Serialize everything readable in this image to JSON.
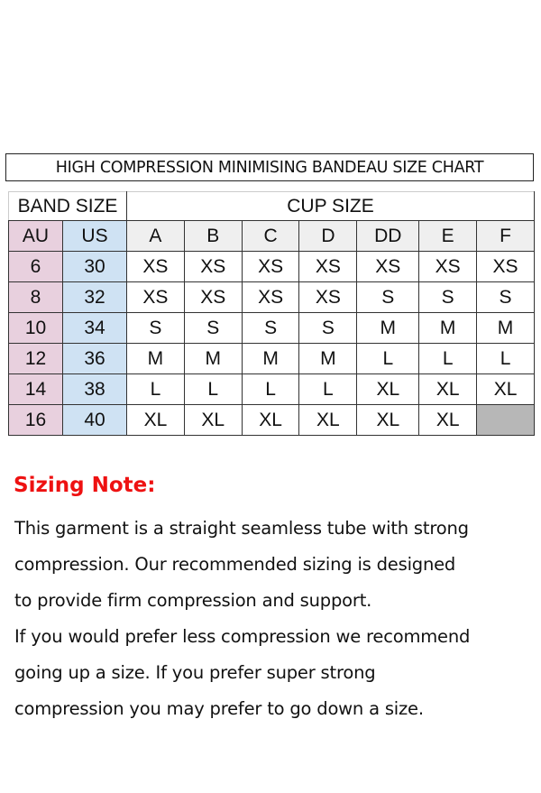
{
  "title": "HIGH COMPRESSION MINIMISING BANDEAU SIZE CHART",
  "table": {
    "band_header": "BAND SIZE",
    "cup_header": "CUP SIZE",
    "columns": [
      "AU",
      "US",
      "A",
      "B",
      "C",
      "D",
      "DD",
      "E",
      "F"
    ],
    "rows": [
      [
        "6",
        "30",
        "XS",
        "XS",
        "XS",
        "XS",
        "XS",
        "XS",
        "XS"
      ],
      [
        "8",
        "32",
        "XS",
        "XS",
        "XS",
        "XS",
        "S",
        "S",
        "S"
      ],
      [
        "10",
        "34",
        "S",
        "S",
        "S",
        "S",
        "M",
        "M",
        "M"
      ],
      [
        "12",
        "36",
        "M",
        "M",
        "M",
        "M",
        "L",
        "L",
        "L"
      ],
      [
        "14",
        "38",
        "L",
        "L",
        "L",
        "L",
        "XL",
        "XL",
        "XL"
      ],
      [
        "16",
        "40",
        "XL",
        "XL",
        "XL",
        "XL",
        "XL",
        "XL",
        ""
      ]
    ]
  },
  "colors": {
    "au": "#e8d0de",
    "us": "#cfe2f3",
    "header": "#efefef",
    "unavailable": "#b7b7b7",
    "note_title": "#ee1111"
  },
  "note": {
    "title": "Sizing Note:",
    "lines": [
      "This garment is a straight seamless tube with strong",
      "compression. Our recommended sizing is designed",
      "to provide firm compression and support.",
      "If you would prefer less compression we recommend",
      "going up a size. If you prefer super strong",
      "compression you may prefer to go down a size."
    ]
  }
}
